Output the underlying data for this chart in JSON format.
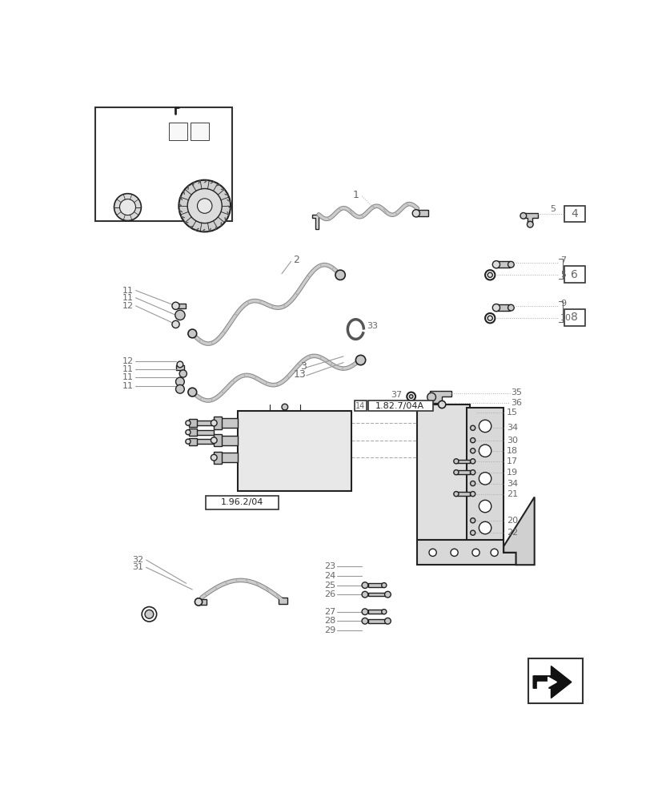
{
  "bg_color": "#ffffff",
  "dark": "#222222",
  "gray": "#666666",
  "lgray": "#999999",
  "fig_width": 8.28,
  "fig_height": 10.0,
  "dpi": 100
}
